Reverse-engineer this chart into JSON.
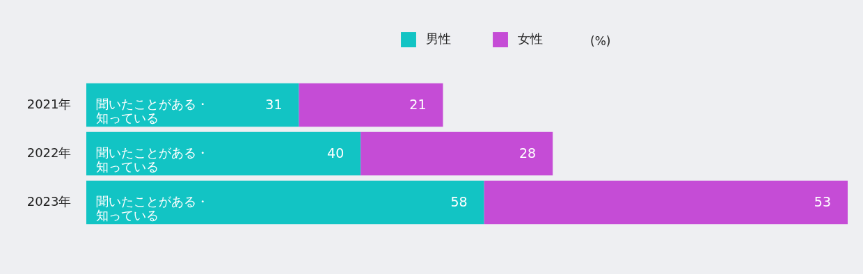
{
  "chart_data": {
    "type": "bar",
    "orientation": "horizontal",
    "stacked": true,
    "data_labels": true,
    "legend": "top",
    "xlabel": "(%)",
    "categories": [
      "2021年",
      "2022年",
      "2023年"
    ],
    "series": [
      {
        "name": "男性",
        "color": "#12c4c4",
        "values": [
          31,
          40,
          58
        ]
      },
      {
        "name": "女性",
        "color": "#c54cd6",
        "values": [
          21,
          28,
          53
        ]
      }
    ],
    "annotations": [
      {
        "text": "聞いたことがある・知っている",
        "y": "2021年"
      },
      {
        "text": "聞いたことがある・知っている",
        "y": "2022年"
      },
      {
        "text": "聞いたことがある・知っている",
        "y": "2023年"
      }
    ]
  }
}
